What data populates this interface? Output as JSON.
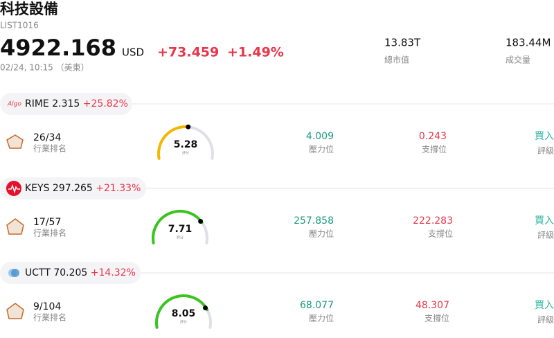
{
  "header": {
    "title": "科技設備",
    "code": "LIST1016",
    "price": "4922.168",
    "currency": "USD",
    "change": "+73.459",
    "change_pct": "+1.49%",
    "datetime": "02/24, 10:15 （美東）",
    "market_cap": {
      "value": "13.83T",
      "label": "總市值"
    },
    "volume": {
      "value": "183.44M",
      "label": "成交量"
    }
  },
  "stocks": [
    {
      "logo": "Algo",
      "ticker": "RIME",
      "price": "2.315",
      "change_pct": "+25.82%",
      "rank": "26/34",
      "rank_label": "行業排名",
      "score": "5.28",
      "score_label": "評分",
      "resistance": "4.009",
      "resistance_label": "壓力位",
      "support": "0.243",
      "support_label": "支撐位",
      "rating": "買入",
      "rating_label": "評級"
    },
    {
      "ticker": "KEYS",
      "price": "297.265",
      "change_pct": "+21.33%",
      "rank": "17/57",
      "rank_label": "行業排名",
      "score": "7.71",
      "score_label": "評分",
      "resistance": "257.858",
      "resistance_label": "壓力位",
      "support": "222.283",
      "support_label": "支撐位",
      "rating": "買入",
      "rating_label": "評級"
    },
    {
      "ticker": "UCTT",
      "price": "70.205",
      "change_pct": "+14.32%",
      "rank": "9/104",
      "rank_label": "行業排名",
      "score": "8.05",
      "score_label": "評分",
      "resistance": "68.077",
      "resistance_label": "壓力位",
      "support": "48.307",
      "support_label": "支撐位",
      "rating": "買入",
      "rating_label": "評級"
    }
  ]
}
